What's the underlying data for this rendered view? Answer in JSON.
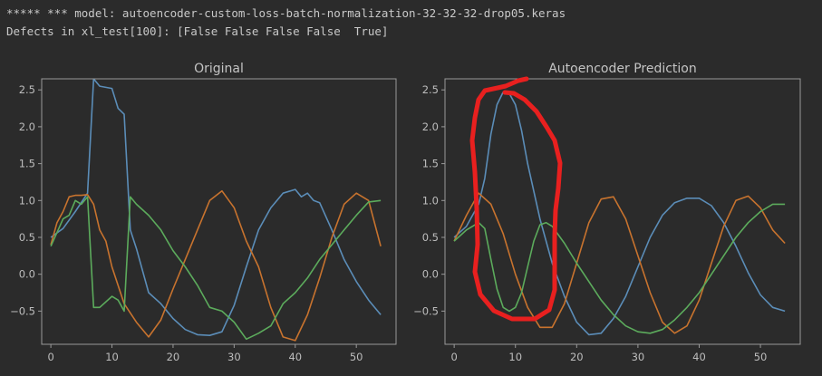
{
  "console": {
    "line1": "***** *** model: autoencoder-custom-loss-batch-normalization-32-32-32-drop05.keras",
    "line2": "Defects in xl_test[100]: [False False False False  True]"
  },
  "colors": {
    "background": "#2b2b2b",
    "axes": "#9a9a9a",
    "text": "#bdbdbd",
    "series_blue": "#5b8db8",
    "series_orange": "#c8732e",
    "series_green": "#5cab5c",
    "annotation_red": "#e8201f"
  },
  "chart_data": [
    {
      "type": "line",
      "title": "Original",
      "xlim": [
        -1.5,
        56.5
      ],
      "ylim": [
        -0.95,
        2.65
      ],
      "xticks": [
        0,
        10,
        20,
        30,
        40,
        50
      ],
      "yticks": [
        -0.5,
        0.0,
        0.5,
        1.0,
        1.5,
        2.0,
        2.5
      ],
      "ytick_labels": [
        "−0.5",
        "0.0",
        "0.5",
        "1.0",
        "1.5",
        "2.0",
        "2.5"
      ],
      "series": [
        {
          "color": "#5b8db8",
          "x": [
            0,
            2,
            4,
            6,
            7,
            8,
            10,
            11,
            12,
            13,
            14,
            16,
            18,
            20,
            22,
            24,
            26,
            28,
            30,
            32,
            34,
            36,
            38,
            40,
            41,
            42,
            43,
            44,
            46,
            48,
            50,
            52,
            54
          ],
          "y": [
            0.5,
            0.62,
            0.85,
            1.1,
            2.65,
            2.55,
            2.52,
            2.25,
            2.17,
            0.6,
            0.35,
            -0.25,
            -0.4,
            -0.6,
            -0.75,
            -0.82,
            -0.83,
            -0.78,
            -0.42,
            0.1,
            0.6,
            0.9,
            1.1,
            1.15,
            1.05,
            1.1,
            1.0,
            0.97,
            0.6,
            0.2,
            -0.1,
            -0.35,
            -0.55
          ]
        },
        {
          "color": "#c8732e",
          "x": [
            0,
            1,
            2,
            3,
            4,
            5,
            6,
            7,
            8,
            9,
            10,
            12,
            14,
            16,
            18,
            20,
            22,
            24,
            26,
            28,
            30,
            32,
            34,
            36,
            38,
            40,
            42,
            44,
            46,
            48,
            50,
            52,
            54
          ],
          "y": [
            0.4,
            0.7,
            0.85,
            1.05,
            1.07,
            1.07,
            1.08,
            0.95,
            0.6,
            0.45,
            0.1,
            -0.4,
            -0.65,
            -0.85,
            -0.62,
            -0.2,
            0.2,
            0.6,
            1.0,
            1.13,
            0.9,
            0.45,
            0.1,
            -0.45,
            -0.85,
            -0.9,
            -0.55,
            -0.05,
            0.5,
            0.95,
            1.1,
            1.0,
            0.38
          ]
        },
        {
          "color": "#5cab5c",
          "x": [
            0,
            2,
            3,
            4,
            5,
            6,
            7,
            8,
            10,
            11,
            12,
            13,
            14,
            16,
            18,
            20,
            22,
            24,
            26,
            28,
            30,
            32,
            34,
            36,
            38,
            40,
            42,
            44,
            46,
            48,
            50,
            52,
            54
          ],
          "y": [
            0.38,
            0.75,
            0.8,
            1.0,
            0.95,
            1.05,
            -0.45,
            -0.45,
            -0.3,
            -0.35,
            -0.5,
            1.05,
            0.95,
            0.8,
            0.6,
            0.32,
            0.1,
            -0.15,
            -0.45,
            -0.5,
            -0.65,
            -0.88,
            -0.8,
            -0.7,
            -0.4,
            -0.25,
            -0.05,
            0.2,
            0.4,
            0.6,
            0.8,
            0.98,
            1.0
          ]
        }
      ]
    },
    {
      "type": "line",
      "title": "Autoencoder Prediction",
      "xlim": [
        -1.5,
        56.5
      ],
      "ylim": [
        -0.95,
        2.65
      ],
      "xticks": [
        0,
        10,
        20,
        30,
        40,
        50
      ],
      "yticks": [
        -0.5,
        0.0,
        0.5,
        1.0,
        1.5,
        2.0,
        2.5
      ],
      "ytick_labels": [
        "−0.5",
        "0.0",
        "0.5",
        "1.0",
        "1.5",
        "2.0",
        "2.5"
      ],
      "series": [
        {
          "color": "#5b8db8",
          "x": [
            0,
            2,
            4,
            5,
            6,
            7,
            8,
            9,
            10,
            11,
            12,
            14,
            16,
            18,
            20,
            22,
            24,
            26,
            28,
            30,
            32,
            34,
            36,
            38,
            40,
            42,
            44,
            46,
            48,
            50,
            52,
            54
          ],
          "y": [
            0.5,
            0.65,
            0.95,
            1.3,
            1.9,
            2.3,
            2.47,
            2.45,
            2.3,
            1.95,
            1.5,
            0.75,
            0.15,
            -0.3,
            -0.65,
            -0.82,
            -0.8,
            -0.6,
            -0.3,
            0.1,
            0.5,
            0.8,
            0.97,
            1.03,
            1.03,
            0.93,
            0.7,
            0.38,
            0.02,
            -0.28,
            -0.45,
            -0.5
          ]
        },
        {
          "color": "#c8732e",
          "x": [
            0,
            2,
            4,
            6,
            8,
            10,
            12,
            14,
            16,
            18,
            20,
            22,
            24,
            26,
            28,
            30,
            32,
            34,
            36,
            38,
            40,
            42,
            44,
            46,
            48,
            50,
            52,
            54
          ],
          "y": [
            0.45,
            0.8,
            1.1,
            0.95,
            0.55,
            0.0,
            -0.45,
            -0.72,
            -0.72,
            -0.4,
            0.15,
            0.7,
            1.02,
            1.05,
            0.75,
            0.25,
            -0.25,
            -0.65,
            -0.8,
            -0.7,
            -0.35,
            0.15,
            0.65,
            1.0,
            1.06,
            0.9,
            0.6,
            0.42
          ]
        },
        {
          "color": "#5cab5c",
          "x": [
            0,
            2,
            4,
            5,
            6,
            7,
            8,
            9,
            10,
            11,
            12,
            13,
            14,
            15,
            16,
            18,
            20,
            22,
            24,
            26,
            28,
            30,
            32,
            34,
            36,
            38,
            40,
            42,
            44,
            46,
            48,
            50,
            52,
            54
          ],
          "y": [
            0.45,
            0.6,
            0.7,
            0.62,
            0.2,
            -0.2,
            -0.45,
            -0.5,
            -0.45,
            -0.25,
            0.1,
            0.45,
            0.67,
            0.7,
            0.65,
            0.42,
            0.15,
            -0.1,
            -0.35,
            -0.55,
            -0.7,
            -0.78,
            -0.8,
            -0.75,
            -0.62,
            -0.45,
            -0.25,
            0.0,
            0.25,
            0.5,
            0.7,
            0.85,
            0.95,
            0.95
          ]
        }
      ]
    }
  ]
}
